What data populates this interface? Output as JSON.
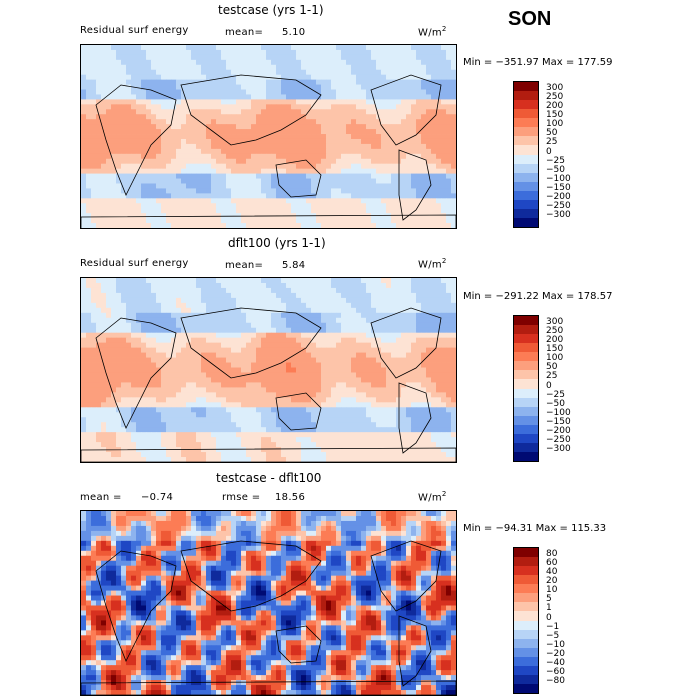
{
  "season": "SON",
  "panels": [
    {
      "id": "testcase",
      "title": "testcase (yrs 1-1)",
      "left_label": "Residual surf energy",
      "stat1_label": "mean=",
      "stat1_value": "5.10",
      "stat2_label": "",
      "stat2_value": "",
      "units": "W/m",
      "units_sup": "2",
      "minmax": "Min = −351.97 Max = 177.59",
      "colorbar_ticks": [
        "300",
        "250",
        "200",
        "150",
        "100",
        "50",
        "25",
        "0",
        "−25",
        "−50",
        "−100",
        "−150",
        "−200",
        "−250",
        "−300"
      ],
      "colorbar_colors": [
        "#7f0000",
        "#b21d10",
        "#d7301f",
        "#ef5a36",
        "#fc7c55",
        "#fc9f7d",
        "#fdc4a9",
        "#fde3d4",
        "#dceefb",
        "#b7d4f6",
        "#8db3ee",
        "#6491e6",
        "#3c6ddb",
        "#1f47c4",
        "#0f2a9c",
        "#000a73"
      ],
      "chart_data": {
        "type": "heatmap",
        "field": "Residual surface energy",
        "mean": 5.1,
        "min": -351.97,
        "max": 177.59,
        "units": "W/m2",
        "levels": [
          -300,
          -250,
          -200,
          -150,
          -100,
          -50,
          -25,
          0,
          25,
          50,
          100,
          150,
          200,
          250,
          300
        ]
      }
    },
    {
      "id": "dflt100",
      "title": "dflt100 (yrs 1-1)",
      "left_label": "Residual surf energy",
      "stat1_label": "mean=",
      "stat1_value": "5.84",
      "stat2_label": "",
      "stat2_value": "",
      "units": "W/m",
      "units_sup": "2",
      "minmax": "Min = −291.22 Max = 178.57",
      "colorbar_ticks": [
        "300",
        "250",
        "200",
        "150",
        "100",
        "50",
        "25",
        "0",
        "−25",
        "−50",
        "−100",
        "−150",
        "−200",
        "−250",
        "−300"
      ],
      "colorbar_colors": [
        "#7f0000",
        "#b21d10",
        "#d7301f",
        "#ef5a36",
        "#fc7c55",
        "#fc9f7d",
        "#fdc4a9",
        "#fde3d4",
        "#dceefb",
        "#b7d4f6",
        "#8db3ee",
        "#6491e6",
        "#3c6ddb",
        "#1f47c4",
        "#0f2a9c",
        "#000a73"
      ],
      "chart_data": {
        "type": "heatmap",
        "field": "Residual surface energy",
        "mean": 5.84,
        "min": -291.22,
        "max": 178.57,
        "units": "W/m2",
        "levels": [
          -300,
          -250,
          -200,
          -150,
          -100,
          -50,
          -25,
          0,
          25,
          50,
          100,
          150,
          200,
          250,
          300
        ]
      }
    },
    {
      "id": "difference",
      "title": "testcase - dflt100",
      "left_label": "",
      "stat1_label": "mean =",
      "stat1_value": "−0.74",
      "stat2_label": "rmse =",
      "stat2_value": "18.56",
      "units": "W/m",
      "units_sup": "2",
      "minmax": "Min = −94.31 Max = 115.33",
      "colorbar_ticks": [
        "80",
        "60",
        "40",
        "20",
        "10",
        "5",
        "1",
        "0",
        "−1",
        "−5",
        "−10",
        "−20",
        "−40",
        "−60",
        "−80"
      ],
      "colorbar_colors": [
        "#7f0000",
        "#b21d10",
        "#d7301f",
        "#ef5a36",
        "#fc7c55",
        "#fc9f7d",
        "#fdc4a9",
        "#fde3d4",
        "#dceefb",
        "#b7d4f6",
        "#8db3ee",
        "#6491e6",
        "#3c6ddb",
        "#1f47c4",
        "#0f2a9c",
        "#000a73"
      ],
      "chart_data": {
        "type": "heatmap",
        "field": "Residual surface energy difference",
        "mean": -0.74,
        "rmse": 18.56,
        "min": -94.31,
        "max": 115.33,
        "units": "W/m2",
        "levels": [
          -80,
          -60,
          -40,
          -20,
          -10,
          -5,
          -1,
          0,
          1,
          5,
          10,
          20,
          40,
          60,
          80
        ]
      }
    }
  ]
}
